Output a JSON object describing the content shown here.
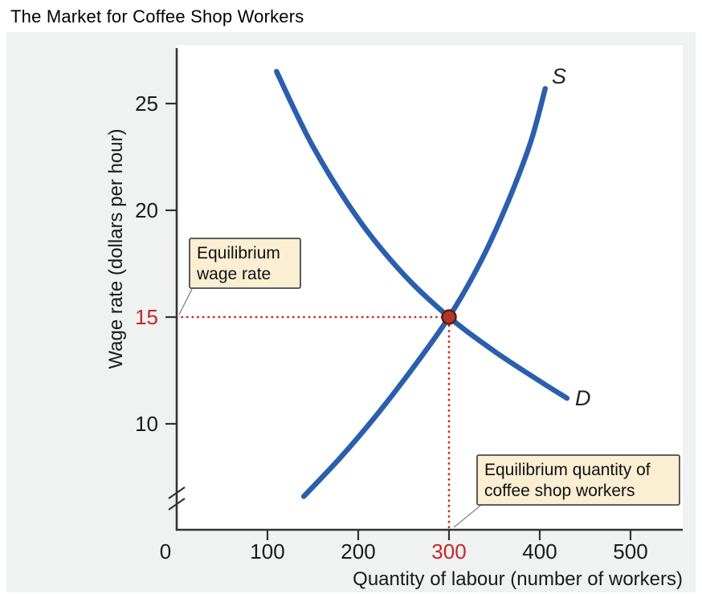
{
  "title": "The Market for Coffee Shop Workers",
  "chart_data": {
    "type": "line",
    "title": "The Market for Coffee Shop Workers",
    "xlabel": "Quantity of labour (number of workers)",
    "ylabel": "Wage rate (dollars per hour)",
    "xlim": [
      0,
      560
    ],
    "ylim": [
      0,
      27
    ],
    "axis_break_y": true,
    "grid": false,
    "x_ticks": [
      0,
      100,
      200,
      300,
      400,
      500
    ],
    "y_ticks": [
      10,
      15,
      20,
      25
    ],
    "highlight_x": 300,
    "highlight_y": 15,
    "series": [
      {
        "name": "D",
        "label": "D",
        "role": "demand",
        "points": [
          [
            110,
            26.5
          ],
          [
            150,
            23
          ],
          [
            200,
            19.6
          ],
          [
            250,
            17
          ],
          [
            300,
            15
          ],
          [
            350,
            13.4
          ],
          [
            400,
            12
          ],
          [
            430,
            11.2
          ]
        ]
      },
      {
        "name": "S",
        "label": "S",
        "role": "supply",
        "points": [
          [
            140,
            6.6
          ],
          [
            180,
            8.4
          ],
          [
            220,
            10.4
          ],
          [
            260,
            12.6
          ],
          [
            300,
            15
          ],
          [
            335,
            17.6
          ],
          [
            365,
            20.4
          ],
          [
            390,
            23.2
          ],
          [
            406,
            25.7
          ]
        ]
      }
    ],
    "equilibrium": {
      "q": 300,
      "wage": 15
    },
    "annotations": [
      {
        "id": "eq-wage",
        "lines": [
          "Equilibrium",
          "wage rate"
        ]
      },
      {
        "id": "eq-qty",
        "lines": [
          "Equilibrium quantity of",
          "coffee shop workers"
        ]
      }
    ],
    "colors": {
      "curve": "#2b5fad",
      "dotted": "#d22b1f",
      "dot_fill": "#b0382a",
      "dot_stroke": "#5d1c12",
      "highlight_text": "#c1272d",
      "annotation_bg": "#faeed3",
      "annotation_border": "#4a4a4a",
      "axis": "#333333"
    }
  }
}
